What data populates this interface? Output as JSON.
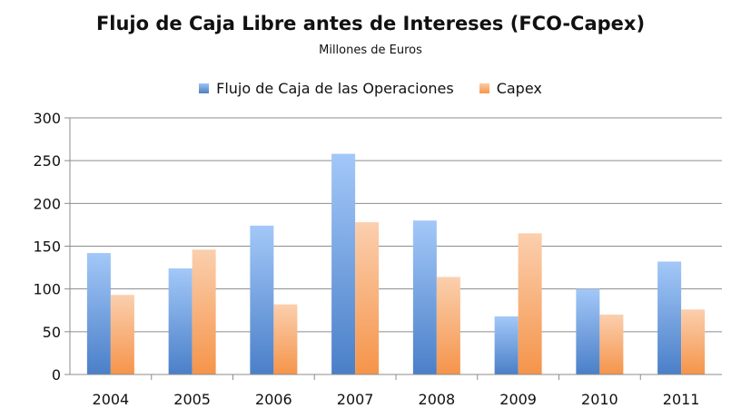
{
  "chart_data": {
    "type": "bar",
    "title": "Flujo de Caja Libre antes de Intereses (FCO-Capex)",
    "subtitle": "Millones de Euros",
    "categories": [
      "2004",
      "2005",
      "2006",
      "2007",
      "2008",
      "2009",
      "2010",
      "2011"
    ],
    "series": [
      {
        "name": "Flujo de Caja de las Operaciones",
        "values": [
          142,
          124,
          174,
          258,
          180,
          68,
          100,
          132
        ],
        "color": "#4f81bd"
      },
      {
        "name": "Capex",
        "values": [
          93,
          146,
          82,
          178,
          114,
          165,
          70,
          76
        ],
        "color": "#f79646"
      }
    ],
    "ylim": [
      0,
      300
    ],
    "yticks": [
      0,
      50,
      100,
      150,
      200,
      250,
      300
    ],
    "grid": true,
    "legend_position": "top"
  }
}
